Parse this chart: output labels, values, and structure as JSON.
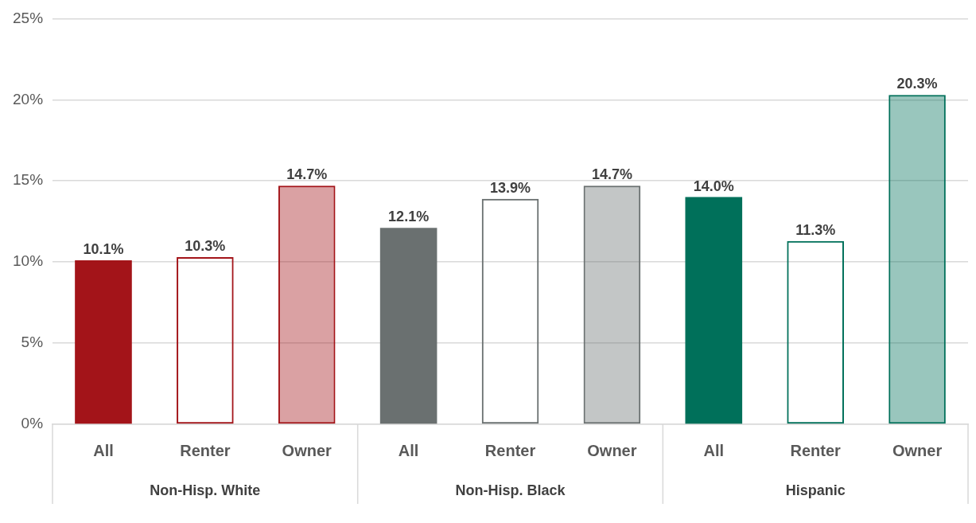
{
  "chart_data": {
    "type": "bar",
    "categories": [
      "All",
      "Renter",
      "Owner",
      "All",
      "Renter",
      "Owner",
      "All",
      "Renter",
      "Owner"
    ],
    "values": [
      10.1,
      10.3,
      14.7,
      12.1,
      13.9,
      14.7,
      14.0,
      11.3,
      20.3
    ],
    "colors": [
      "#a31419",
      "#a31419",
      "#a31419",
      "#6a7070",
      "#6a7070",
      "#6a7070",
      "#00705a",
      "#00705a",
      "#00705a"
    ],
    "value_labels": [
      "10.1%",
      "10.3%",
      "14.7%",
      "12.1%",
      "13.9%",
      "14.7%",
      "14.0%",
      "11.3%",
      "20.3%"
    ],
    "ylim": [
      0,
      25
    ],
    "yticks": [
      {
        "value": 0,
        "label": "0%"
      },
      {
        "value": 5,
        "label": "5%"
      },
      {
        "value": 10,
        "label": "10%"
      },
      {
        "value": 15,
        "label": "15%"
      },
      {
        "value": 20,
        "label": "20%"
      },
      {
        "value": 25,
        "label": "25%"
      }
    ],
    "grid": "y",
    "legend": false,
    "annotations": [
      "Non-Hisp. White",
      "Non-Hisp. Black",
      "Hispanic"
    ]
  }
}
